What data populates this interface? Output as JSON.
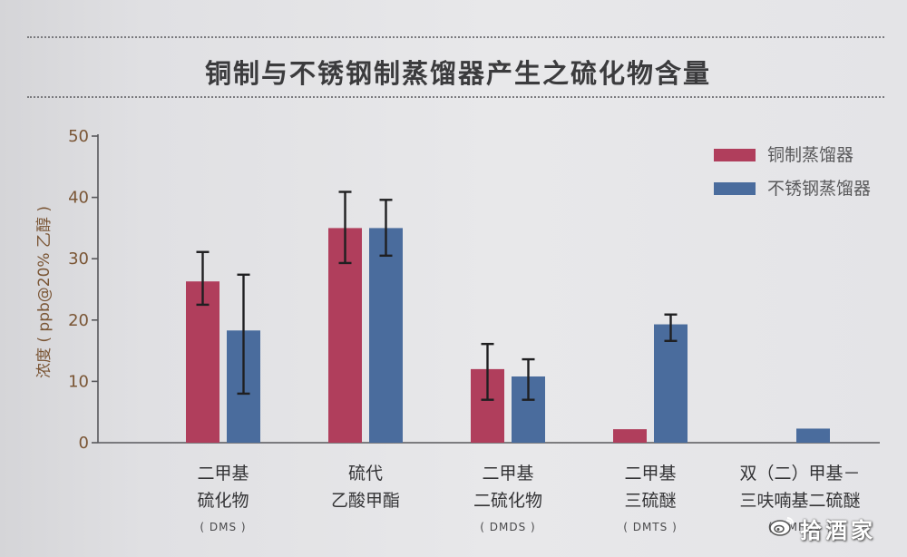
{
  "colors": {
    "axis": "#58585c",
    "axis_text": "#7a5534",
    "error_bar": "#1f1f21"
  },
  "watermark": {
    "icon": "weibo-logo-icon",
    "text": "拾酒家"
  },
  "chart_data": {
    "type": "bar",
    "title": "铜制与不锈钢制蒸馏器产生之硫化物含量",
    "xlabel": "",
    "ylabel": "浓度 ( ppb@20% 乙醇 )",
    "ylim": [
      0,
      50
    ],
    "yticks": [
      0,
      10,
      20,
      30,
      40,
      50
    ],
    "grid": false,
    "legend_position": "top-right",
    "categories": [
      {
        "lines": [
          "二甲基",
          "硫化物"
        ],
        "abbr": "( DMS )"
      },
      {
        "lines": [
          "硫代",
          "乙酸甲酯"
        ]
      },
      {
        "lines": [
          "二甲基",
          "二硫化物"
        ],
        "abbr": "( DMDS )"
      },
      {
        "lines": [
          "二甲基",
          "三硫醚"
        ],
        "abbr": "( DMTS )"
      },
      {
        "lines": [
          "双（二）甲基－",
          "三呋喃基二硫醚"
        ],
        "abbr": "( MMFDS )"
      }
    ],
    "series": [
      {
        "name": "铜制蒸馏器",
        "color": "#b03e5c",
        "values": [
          26.3,
          35.0,
          12.0,
          2.2,
          0
        ],
        "error_bars": [
          [
            22.5,
            31.1
          ],
          [
            29.3,
            40.9
          ],
          [
            7.0,
            16.1
          ],
          null,
          null
        ]
      },
      {
        "name": "不锈钢蒸馏器",
        "color": "#4a6c9d",
        "values": [
          18.3,
          35.0,
          10.8,
          19.3,
          2.3
        ],
        "error_bars": [
          [
            8.0,
            27.4
          ],
          [
            30.5,
            39.6
          ],
          [
            7.0,
            13.6
          ],
          [
            16.6,
            20.9
          ],
          null
        ]
      }
    ]
  }
}
